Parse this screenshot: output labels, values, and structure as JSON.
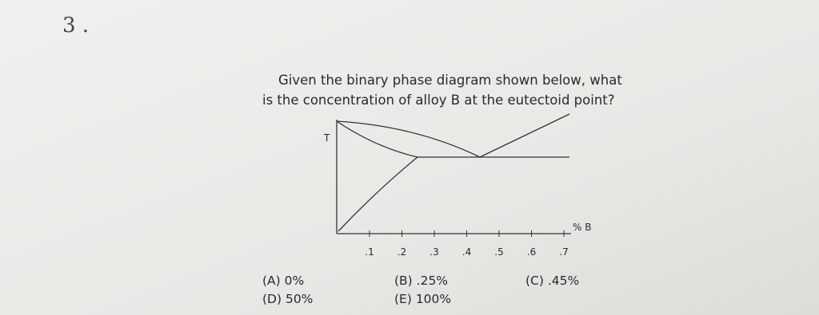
{
  "question_number": "3 .",
  "question": {
    "line1": "Given the binary phase diagram shown below, what",
    "line2": "is the concentration of alloy B at the eutectoid point?"
  },
  "diagram": {
    "y_label": "T",
    "x_label": "% B",
    "ticks": [
      ".1",
      ".2",
      ".3",
      ".4",
      ".5",
      ".6",
      ".7"
    ]
  },
  "options": {
    "A": "(A) 0%",
    "B": "(B) .25%",
    "C": "(C) .45%",
    "D": "(D) 50%",
    "E": "(E) 100%"
  }
}
